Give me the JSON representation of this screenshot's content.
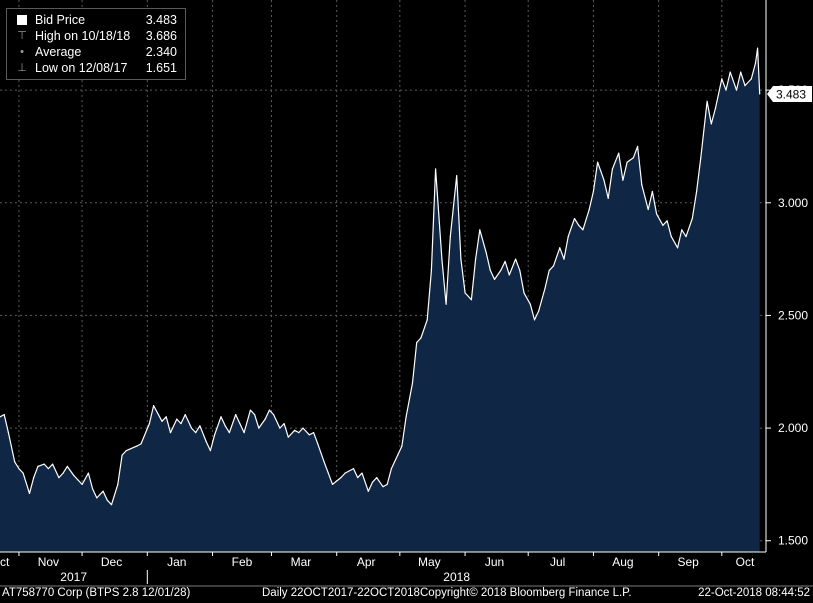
{
  "legend": {
    "bid_label": "Bid Price",
    "bid_value": "3.483",
    "high_label": "High on 10/18/18",
    "high_value": "3.686",
    "avg_label": "Average",
    "avg_value": "2.340",
    "low_label": "Low on 12/08/17",
    "low_value": "1.651"
  },
  "footer": {
    "security": "AT758770 Corp (BTPS 2.8 12/01/28)",
    "range": "Daily 22OCT2017-22OCT2018",
    "copyright": "Copyright© 2018 Bloomberg Finance L.P.",
    "timestamp": "22-Oct-2018 08:44:52"
  },
  "colors": {
    "background": "#000000",
    "area": "#0f2744",
    "line": "#ffffff",
    "grid": "#5c5c5c"
  },
  "chart_data": {
    "type": "area",
    "x_start": "2017-10-23",
    "x_end": "2018-10-22",
    "ylim": [
      1.45,
      3.9
    ],
    "yticks": [
      1.5,
      2.0,
      2.5,
      3.0,
      3.5
    ],
    "ytick_labels": [
      "1.500",
      "2.000",
      "2.500",
      "3.000",
      "3.500"
    ],
    "current_value_label": "3.483",
    "x_month_labels": [
      {
        "date": "2017-10-23",
        "label": "Oct"
      },
      {
        "date": "2017-11-15",
        "label": "Nov"
      },
      {
        "date": "2017-12-15",
        "label": "Dec"
      },
      {
        "date": "2018-01-15",
        "label": "Jan"
      },
      {
        "date": "2018-02-15",
        "label": "Feb"
      },
      {
        "date": "2018-03-15",
        "label": "Mar"
      },
      {
        "date": "2018-04-15",
        "label": "Apr"
      },
      {
        "date": "2018-05-15",
        "label": "May"
      },
      {
        "date": "2018-06-15",
        "label": "Jun"
      },
      {
        "date": "2018-07-15",
        "label": "Jul"
      },
      {
        "date": "2018-08-15",
        "label": "Aug"
      },
      {
        "date": "2018-09-15",
        "label": "Sep"
      },
      {
        "date": "2018-10-12",
        "label": "Oct"
      }
    ],
    "year_labels": [
      {
        "date": "2017-11-27",
        "label": "2017"
      },
      {
        "date": "2018-05-28",
        "label": "2018"
      }
    ],
    "gridlines": [
      "2017-11-01",
      "2017-12-01",
      "2018-01-01",
      "2018-02-01",
      "2018-03-01",
      "2018-04-01",
      "2018-05-01",
      "2018-06-01",
      "2018-07-01",
      "2018-08-01",
      "2018-09-01",
      "2018-10-01"
    ],
    "grid": true,
    "series": [
      {
        "name": "Bid Price",
        "points": [
          [
            "2017-10-23",
            2.05
          ],
          [
            "2017-10-25",
            2.06
          ],
          [
            "2017-10-27",
            1.98
          ],
          [
            "2017-10-30",
            1.85
          ],
          [
            "2017-11-01",
            1.82
          ],
          [
            "2017-11-03",
            1.8
          ],
          [
            "2017-11-06",
            1.71
          ],
          [
            "2017-11-08",
            1.78
          ],
          [
            "2017-11-10",
            1.83
          ],
          [
            "2017-11-13",
            1.84
          ],
          [
            "2017-11-15",
            1.82
          ],
          [
            "2017-11-17",
            1.84
          ],
          [
            "2017-11-20",
            1.78
          ],
          [
            "2017-11-22",
            1.8
          ],
          [
            "2017-11-24",
            1.83
          ],
          [
            "2017-11-27",
            1.79
          ],
          [
            "2017-11-29",
            1.77
          ],
          [
            "2017-12-01",
            1.75
          ],
          [
            "2017-12-04",
            1.8
          ],
          [
            "2017-12-06",
            1.73
          ],
          [
            "2017-12-08",
            1.69
          ],
          [
            "2017-12-11",
            1.72
          ],
          [
            "2017-12-13",
            1.68
          ],
          [
            "2017-12-15",
            1.66
          ],
          [
            "2017-12-18",
            1.75
          ],
          [
            "2017-12-20",
            1.88
          ],
          [
            "2017-12-22",
            1.9
          ],
          [
            "2017-12-27",
            1.92
          ],
          [
            "2017-12-29",
            1.93
          ],
          [
            "2018-01-02",
            2.02
          ],
          [
            "2018-01-04",
            2.1
          ],
          [
            "2018-01-08",
            2.03
          ],
          [
            "2018-01-10",
            2.05
          ],
          [
            "2018-01-12",
            1.98
          ],
          [
            "2018-01-15",
            2.04
          ],
          [
            "2018-01-17",
            2.02
          ],
          [
            "2018-01-19",
            2.06
          ],
          [
            "2018-01-22",
            2.0
          ],
          [
            "2018-01-24",
            1.98
          ],
          [
            "2018-01-26",
            2.01
          ],
          [
            "2018-01-29",
            1.94
          ],
          [
            "2018-01-31",
            1.9
          ],
          [
            "2018-02-02",
            1.97
          ],
          [
            "2018-02-05",
            2.05
          ],
          [
            "2018-02-07",
            2.01
          ],
          [
            "2018-02-09",
            1.98
          ],
          [
            "2018-02-12",
            2.06
          ],
          [
            "2018-02-14",
            2.02
          ],
          [
            "2018-02-16",
            1.98
          ],
          [
            "2018-02-19",
            2.08
          ],
          [
            "2018-02-21",
            2.06
          ],
          [
            "2018-02-23",
            2.0
          ],
          [
            "2018-02-26",
            2.04
          ],
          [
            "2018-02-28",
            2.08
          ],
          [
            "2018-03-02",
            2.06
          ],
          [
            "2018-03-05",
            2.0
          ],
          [
            "2018-03-07",
            2.02
          ],
          [
            "2018-03-09",
            1.96
          ],
          [
            "2018-03-12",
            1.99
          ],
          [
            "2018-03-14",
            1.98
          ],
          [
            "2018-03-16",
            2.0
          ],
          [
            "2018-03-19",
            1.97
          ],
          [
            "2018-03-21",
            1.98
          ],
          [
            "2018-03-23",
            1.93
          ],
          [
            "2018-03-26",
            1.85
          ],
          [
            "2018-03-28",
            1.8
          ],
          [
            "2018-03-30",
            1.75
          ],
          [
            "2018-04-03",
            1.78
          ],
          [
            "2018-04-05",
            1.8
          ],
          [
            "2018-04-09",
            1.82
          ],
          [
            "2018-04-11",
            1.78
          ],
          [
            "2018-04-13",
            1.8
          ],
          [
            "2018-04-16",
            1.72
          ],
          [
            "2018-04-18",
            1.76
          ],
          [
            "2018-04-20",
            1.78
          ],
          [
            "2018-04-23",
            1.74
          ],
          [
            "2018-04-25",
            1.75
          ],
          [
            "2018-04-27",
            1.82
          ],
          [
            "2018-04-30",
            1.88
          ],
          [
            "2018-05-02",
            1.92
          ],
          [
            "2018-05-04",
            2.05
          ],
          [
            "2018-05-07",
            2.2
          ],
          [
            "2018-05-09",
            2.38
          ],
          [
            "2018-05-11",
            2.4
          ],
          [
            "2018-05-14",
            2.48
          ],
          [
            "2018-05-16",
            2.7
          ],
          [
            "2018-05-18",
            3.15
          ],
          [
            "2018-05-21",
            2.75
          ],
          [
            "2018-05-23",
            2.55
          ],
          [
            "2018-05-25",
            2.85
          ],
          [
            "2018-05-28",
            3.12
          ],
          [
            "2018-05-30",
            2.75
          ],
          [
            "2018-06-01",
            2.6
          ],
          [
            "2018-06-04",
            2.57
          ],
          [
            "2018-06-06",
            2.75
          ],
          [
            "2018-06-08",
            2.88
          ],
          [
            "2018-06-11",
            2.78
          ],
          [
            "2018-06-13",
            2.7
          ],
          [
            "2018-06-15",
            2.66
          ],
          [
            "2018-06-18",
            2.7
          ],
          [
            "2018-06-20",
            2.74
          ],
          [
            "2018-06-22",
            2.68
          ],
          [
            "2018-06-25",
            2.75
          ],
          [
            "2018-06-27",
            2.7
          ],
          [
            "2018-06-29",
            2.6
          ],
          [
            "2018-07-02",
            2.55
          ],
          [
            "2018-07-04",
            2.48
          ],
          [
            "2018-07-06",
            2.52
          ],
          [
            "2018-07-09",
            2.62
          ],
          [
            "2018-07-11",
            2.7
          ],
          [
            "2018-07-13",
            2.72
          ],
          [
            "2018-07-16",
            2.8
          ],
          [
            "2018-07-18",
            2.75
          ],
          [
            "2018-07-20",
            2.85
          ],
          [
            "2018-07-23",
            2.93
          ],
          [
            "2018-07-25",
            2.9
          ],
          [
            "2018-07-27",
            2.88
          ],
          [
            "2018-07-30",
            2.97
          ],
          [
            "2018-08-01",
            3.05
          ],
          [
            "2018-08-03",
            3.18
          ],
          [
            "2018-08-06",
            3.1
          ],
          [
            "2018-08-08",
            3.02
          ],
          [
            "2018-08-10",
            3.15
          ],
          [
            "2018-08-13",
            3.22
          ],
          [
            "2018-08-15",
            3.1
          ],
          [
            "2018-08-17",
            3.18
          ],
          [
            "2018-08-20",
            3.2
          ],
          [
            "2018-08-22",
            3.25
          ],
          [
            "2018-08-24",
            3.08
          ],
          [
            "2018-08-27",
            2.97
          ],
          [
            "2018-08-29",
            3.05
          ],
          [
            "2018-08-31",
            2.95
          ],
          [
            "2018-09-03",
            2.9
          ],
          [
            "2018-09-05",
            2.92
          ],
          [
            "2018-09-07",
            2.85
          ],
          [
            "2018-09-10",
            2.8
          ],
          [
            "2018-09-12",
            2.88
          ],
          [
            "2018-09-14",
            2.85
          ],
          [
            "2018-09-17",
            2.93
          ],
          [
            "2018-09-19",
            3.05
          ],
          [
            "2018-09-21",
            3.2
          ],
          [
            "2018-09-24",
            3.45
          ],
          [
            "2018-09-26",
            3.35
          ],
          [
            "2018-09-28",
            3.42
          ],
          [
            "2018-10-01",
            3.55
          ],
          [
            "2018-10-03",
            3.5
          ],
          [
            "2018-10-05",
            3.58
          ],
          [
            "2018-10-08",
            3.5
          ],
          [
            "2018-10-10",
            3.58
          ],
          [
            "2018-10-12",
            3.52
          ],
          [
            "2018-10-15",
            3.55
          ],
          [
            "2018-10-17",
            3.62
          ],
          [
            "2018-10-18",
            3.686
          ],
          [
            "2018-10-19",
            3.483
          ]
        ]
      }
    ]
  }
}
